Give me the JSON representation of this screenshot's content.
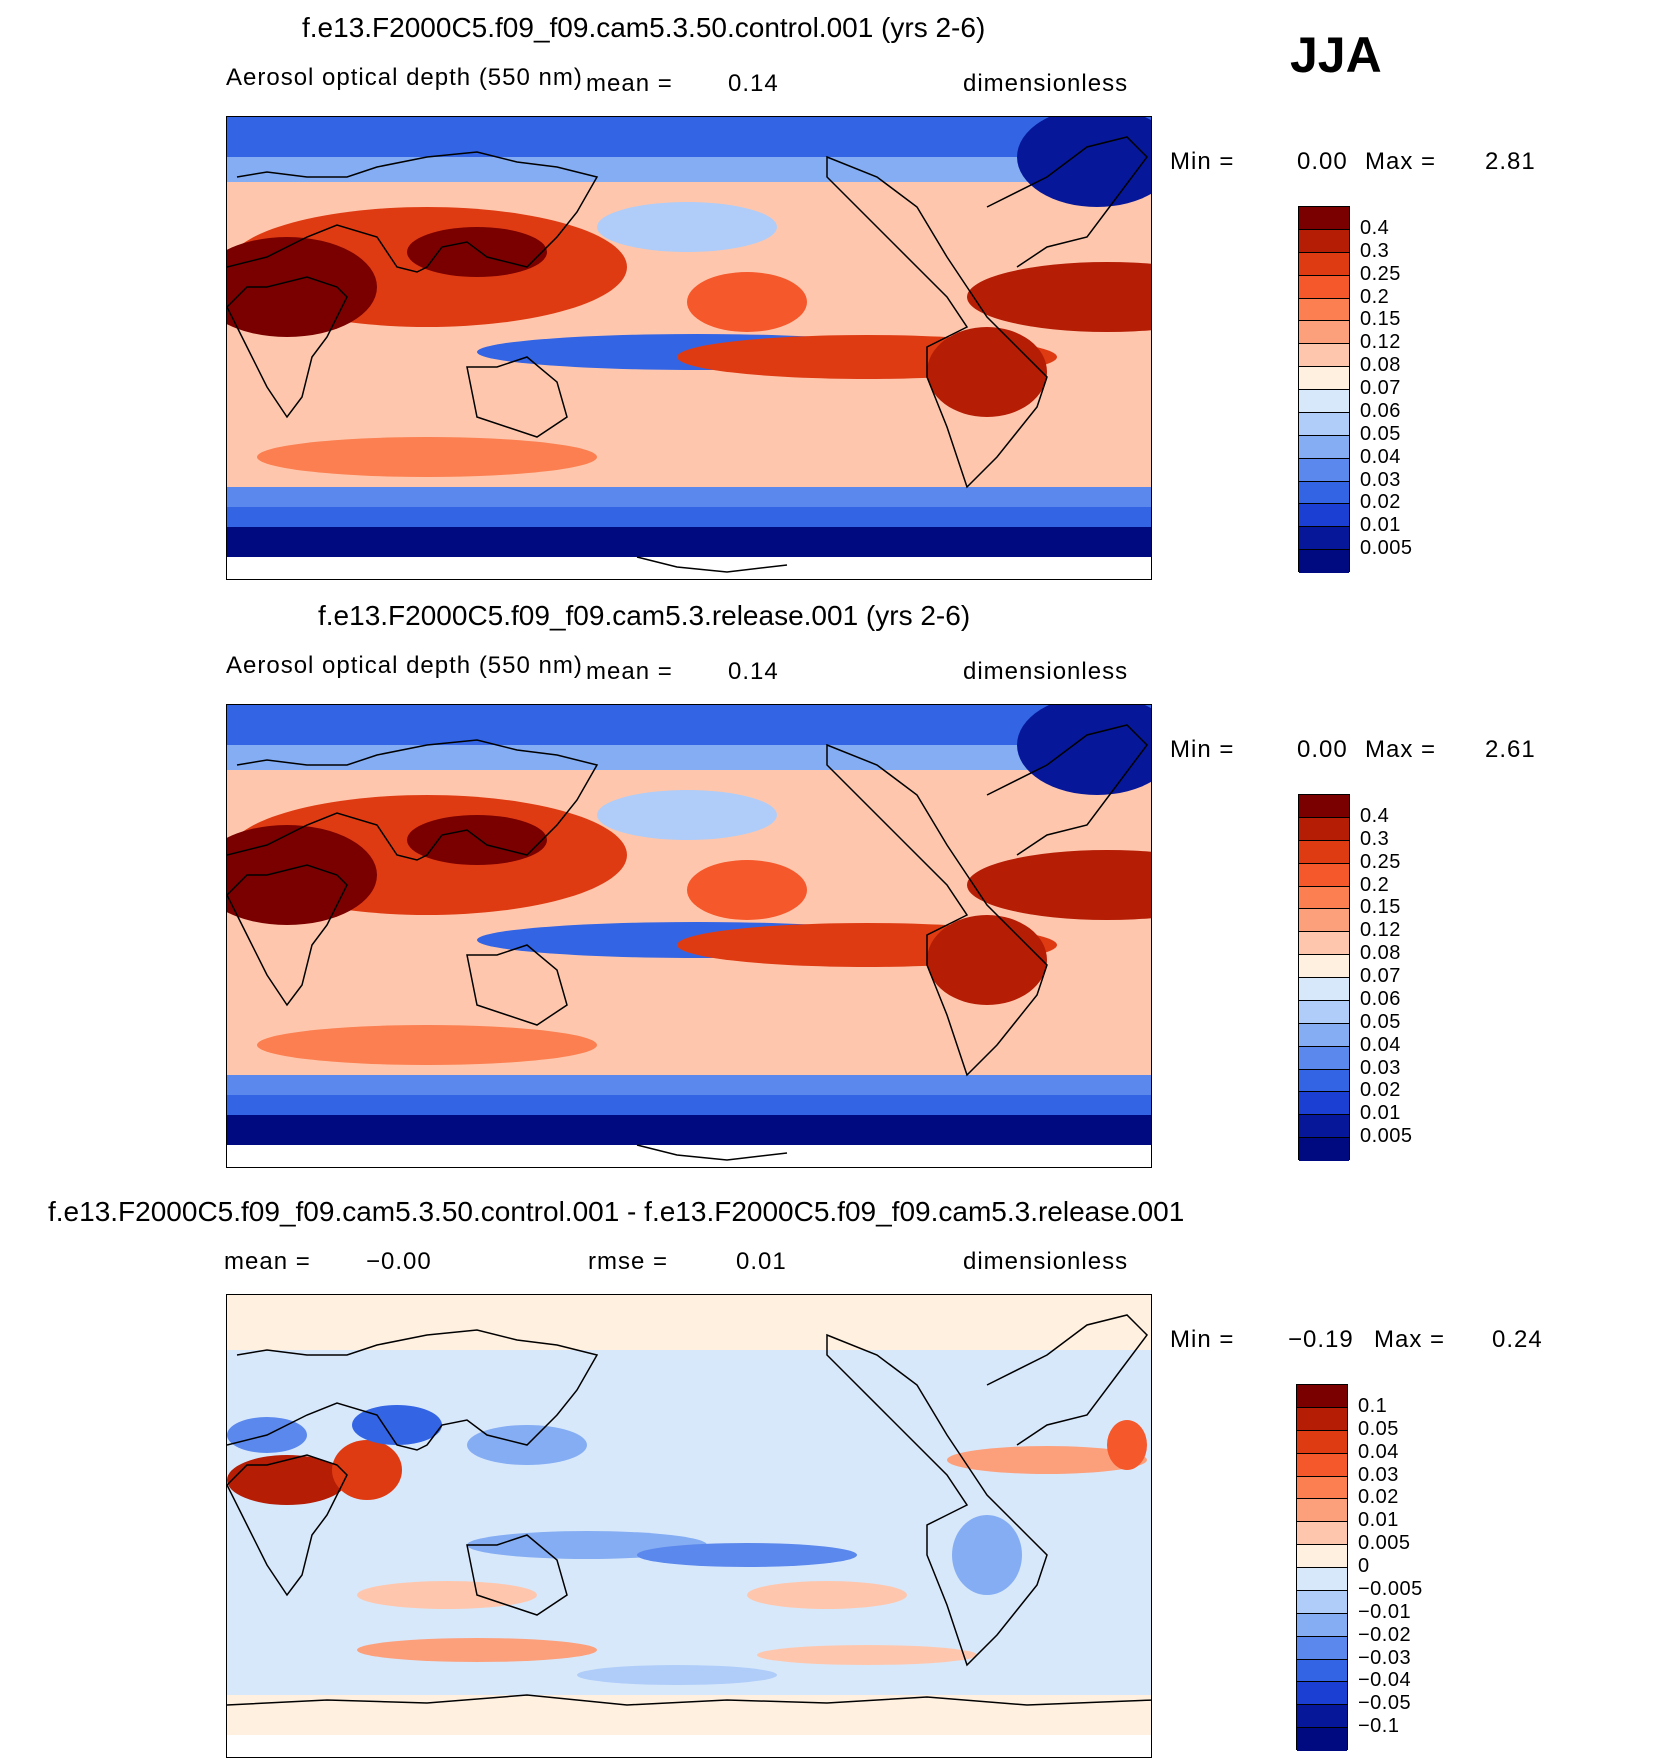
{
  "season": "JJA",
  "chart_data": [
    {
      "type": "heatmap",
      "title": "f.e13.F2000C5.f09_f09.cam5.3.50.control.001 (yrs 2-6)",
      "variable": "Aerosol optical depth (550 nm)",
      "mean_label": "mean =",
      "mean_value": "0.14",
      "units": "dimensionless",
      "min_label": "Min =",
      "min_value": "0.00",
      "max_label": "Max =",
      "max_value": "2.81",
      "levels": [
        "0.4",
        "0.3",
        "0.25",
        "0.2",
        "0.15",
        "0.12",
        "0.08",
        "0.07",
        "0.06",
        "0.05",
        "0.04",
        "0.03",
        "0.02",
        "0.01",
        "0.005"
      ],
      "colors": [
        "#7a0000",
        "#b51d05",
        "#df3b13",
        "#f5582b",
        "#fb7f50",
        "#fca07c",
        "#fec7ad",
        "#fff0e0",
        "#d8e8fb",
        "#afcdf8",
        "#84adf3",
        "#5b88ec",
        "#3264e4",
        "#1a3fd2",
        "#07179a",
        "#000a80"
      ]
    },
    {
      "type": "heatmap",
      "title": "f.e13.F2000C5.f09_f09.cam5.3.release.001 (yrs 2-6)",
      "variable": "Aerosol optical depth (550 nm)",
      "mean_label": "mean =",
      "mean_value": "0.14",
      "units": "dimensionless",
      "min_label": "Min =",
      "min_value": "0.00",
      "max_label": "Max =",
      "max_value": "2.61",
      "levels": [
        "0.4",
        "0.3",
        "0.25",
        "0.2",
        "0.15",
        "0.12",
        "0.08",
        "0.07",
        "0.06",
        "0.05",
        "0.04",
        "0.03",
        "0.02",
        "0.01",
        "0.005"
      ],
      "colors": [
        "#7a0000",
        "#b51d05",
        "#df3b13",
        "#f5582b",
        "#fb7f50",
        "#fca07c",
        "#fec7ad",
        "#fff0e0",
        "#d8e8fb",
        "#afcdf8",
        "#84adf3",
        "#5b88ec",
        "#3264e4",
        "#1a3fd2",
        "#07179a",
        "#000a80"
      ]
    },
    {
      "type": "heatmap",
      "title": "f.e13.F2000C5.f09_f09.cam5.3.50.control.001 - f.e13.F2000C5.f09_f09.cam5.3.release.001",
      "mean_label": "mean =",
      "mean_value": "−0.00",
      "rmse_label": "rmse =",
      "rmse_value": "0.01",
      "units": "dimensionless",
      "min_label": "Min =",
      "min_value": "−0.19",
      "max_label": "Max =",
      "max_value": "0.24",
      "levels": [
        "0.1",
        "0.05",
        "0.04",
        "0.03",
        "0.02",
        "0.01",
        "0.005",
        "0",
        "−0.005",
        "−0.01",
        "−0.02",
        "−0.03",
        "−0.04",
        "−0.05",
        "−0.1"
      ],
      "colors": [
        "#7a0000",
        "#b51d05",
        "#df3b13",
        "#f5582b",
        "#fb7f50",
        "#fca07c",
        "#fec7ad",
        "#fff0e0",
        "#d8e8fb",
        "#afcdf8",
        "#84adf3",
        "#5b88ec",
        "#3264e4",
        "#1a3fd2",
        "#07179a",
        "#000a80"
      ]
    }
  ]
}
